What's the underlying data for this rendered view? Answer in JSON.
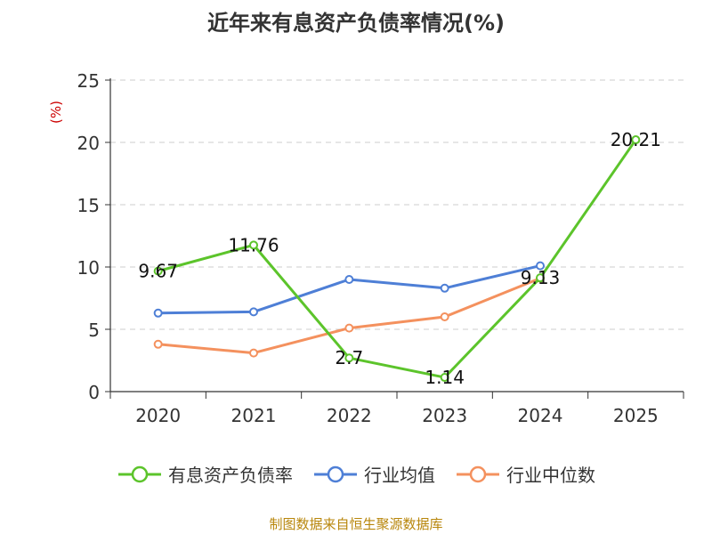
{
  "chart_data": {
    "type": "line",
    "title": "近年来有息资产负债率情况(%)",
    "ylabel": "(%)",
    "categories": [
      "2020",
      "2021",
      "2022",
      "2023",
      "2024",
      "2025"
    ],
    "ylim": [
      0,
      25
    ],
    "yticks": [
      "0",
      "5",
      "10",
      "15",
      "20",
      "25"
    ],
    "grid": true,
    "legend_position": "bottom",
    "series": [
      {
        "name": "有息资产负债率",
        "color": "#5cc42b",
        "values": [
          9.67,
          11.76,
          2.7,
          1.14,
          9.13,
          20.21
        ],
        "labels": [
          "9.67",
          "11.76",
          "2.7",
          "1.14",
          "9.13",
          "20.21"
        ]
      },
      {
        "name": "行业均值",
        "color": "#4e7fd6",
        "values": [
          6.3,
          6.4,
          9.0,
          8.3,
          10.1,
          null
        ]
      },
      {
        "name": "行业中位数",
        "color": "#f4915e",
        "values": [
          3.8,
          3.1,
          5.1,
          6.0,
          9.1,
          null
        ]
      }
    ]
  },
  "source": "制图数据来自恒生聚源数据库"
}
